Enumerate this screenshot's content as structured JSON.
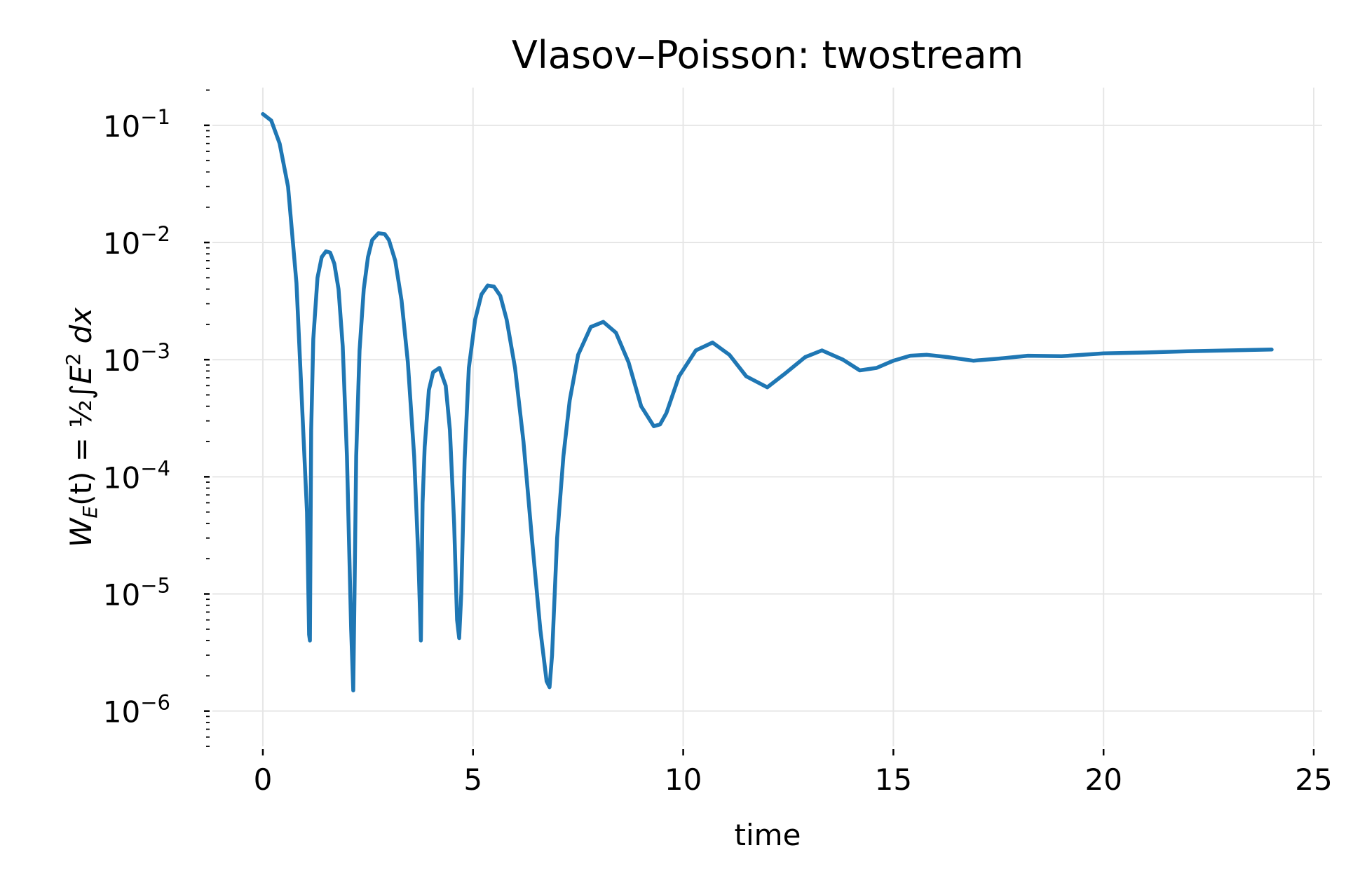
{
  "chart_data": {
    "type": "line",
    "title": "Vlasov–Poisson: twostream",
    "xlabel": "time",
    "ylabel": "W_E(t) = ½∫E² dx",
    "ylabel_parts": {
      "w": "W",
      "sub": "E",
      "mid": "(t) = ",
      "half": "½",
      "integral": "∫",
      "e": "E",
      "sq": "2",
      "dx": " dx"
    },
    "xlim": [
      -1.2,
      25.2
    ],
    "ylim": [
      5e-07,
      0.21
    ],
    "yscale": "log",
    "grid": true,
    "legend": "none",
    "x_ticks": [
      "0",
      "5",
      "10",
      "15",
      "20",
      "25"
    ],
    "y_ticks": [
      {
        "base": "10",
        "exp": "−1"
      },
      {
        "base": "10",
        "exp": "−2"
      },
      {
        "base": "10",
        "exp": "−3"
      },
      {
        "base": "10",
        "exp": "−4"
      },
      {
        "base": "10",
        "exp": "−5"
      },
      {
        "base": "10",
        "exp": "−6"
      }
    ],
    "series": [
      {
        "color": "#1f77b4",
        "x": [
          0,
          0.2,
          0.4,
          0.6,
          0.8,
          0.95,
          1.05,
          1.1,
          1.12,
          1.15,
          1.2,
          1.3,
          1.4,
          1.5,
          1.6,
          1.7,
          1.8,
          1.9,
          2.0,
          2.1,
          2.15,
          2.18,
          2.22,
          2.3,
          2.4,
          2.5,
          2.6,
          2.75,
          2.9,
          3.0,
          3.15,
          3.3,
          3.45,
          3.6,
          3.7,
          3.76,
          3.8,
          3.85,
          3.95,
          4.05,
          4.2,
          4.35,
          4.45,
          4.55,
          4.62,
          4.67,
          4.72,
          4.8,
          4.9,
          5.05,
          5.2,
          5.35,
          5.5,
          5.65,
          5.8,
          6.0,
          6.2,
          6.4,
          6.6,
          6.75,
          6.82,
          6.88,
          7.0,
          7.15,
          7.3,
          7.5,
          7.8,
          8.1,
          8.4,
          8.7,
          9.0,
          9.3,
          9.45,
          9.6,
          9.9,
          10.3,
          10.7,
          11.1,
          11.5,
          12.0,
          12.4,
          12.9,
          13.3,
          13.8,
          14.2,
          14.6,
          15.0,
          15.4,
          15.8,
          16.3,
          16.9,
          17.5,
          18.2,
          19.0,
          20.0,
          21.0,
          22.0,
          23.0,
          24.0
        ],
        "y": [
          0.125,
          0.11,
          0.07,
          0.03,
          0.0045,
          0.0003,
          5e-05,
          4.5e-06,
          4e-06,
          0.00025,
          0.0015,
          0.005,
          0.0075,
          0.0084,
          0.0082,
          0.0066,
          0.004,
          0.0013,
          0.00015,
          5e-06,
          1.5e-06,
          1e-05,
          0.00015,
          0.0012,
          0.004,
          0.0075,
          0.0105,
          0.012,
          0.0118,
          0.0105,
          0.007,
          0.0032,
          0.00095,
          0.00015,
          2e-05,
          4e-06,
          6e-05,
          0.00018,
          0.00055,
          0.00078,
          0.00085,
          0.0006,
          0.00025,
          4e-05,
          6e-06,
          4.2e-06,
          1e-05,
          0.00014,
          0.00085,
          0.0022,
          0.0036,
          0.0043,
          0.0042,
          0.0035,
          0.0022,
          0.00085,
          0.0002,
          3e-05,
          5e-06,
          1.8e-06,
          1.6e-06,
          3e-06,
          3e-05,
          0.00015,
          0.00045,
          0.0011,
          0.0019,
          0.0021,
          0.0017,
          0.00095,
          0.0004,
          0.00027,
          0.00028,
          0.00035,
          0.00072,
          0.0012,
          0.0014,
          0.0011,
          0.00072,
          0.00058,
          0.00075,
          0.00105,
          0.0012,
          0.001,
          0.00081,
          0.00085,
          0.00098,
          0.00108,
          0.0011,
          0.00105,
          0.00098,
          0.00102,
          0.00108,
          0.00107,
          0.00113,
          0.00115,
          0.00118,
          0.0012,
          0.00122
        ]
      }
    ]
  }
}
